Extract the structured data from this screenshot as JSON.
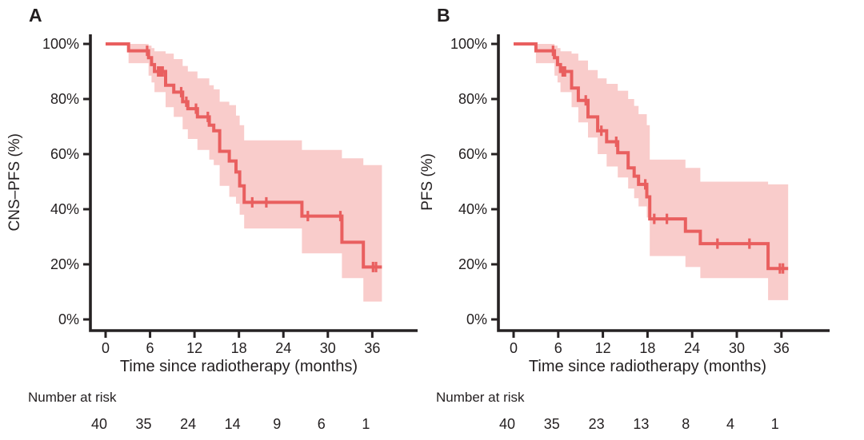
{
  "colors": {
    "line": "#e95f5f",
    "band": "#f9cccb",
    "axis": "#262223",
    "text": "#231f20"
  },
  "chart_data": [
    {
      "type": "line",
      "subtype": "kaplan-meier-step",
      "panel_label": "A",
      "ylabel": "CNS–PFS (%)",
      "xlabel": "Time since radiotherapy (months)",
      "risk_label": "Number at risk",
      "x_ticks": [
        0,
        6,
        12,
        18,
        24,
        30,
        36
      ],
      "y_ticks": [
        {
          "value": 0,
          "label": "0%"
        },
        {
          "value": 20,
          "label": "20%"
        },
        {
          "value": 40,
          "label": "40%"
        },
        {
          "value": 60,
          "label": "60%"
        },
        {
          "value": 80,
          "label": "80%"
        },
        {
          "value": 100,
          "label": "100%"
        }
      ],
      "xlim": [
        0,
        40
      ],
      "ylim": [
        0,
        100
      ],
      "grid": false,
      "legend": false,
      "number_at_risk": [
        40,
        35,
        24,
        14,
        9,
        6,
        1
      ],
      "end_time": 37.3,
      "survival_steps": [
        [
          0,
          100
        ],
        [
          3.1,
          97.5
        ],
        [
          5.8,
          95
        ],
        [
          6.2,
          92.5
        ],
        [
          6.6,
          90
        ],
        [
          8.1,
          85
        ],
        [
          9.2,
          82.5
        ],
        [
          10.4,
          79
        ],
        [
          11.1,
          76.5
        ],
        [
          12.4,
          73.5
        ],
        [
          14.0,
          70.5
        ],
        [
          14.6,
          68.5
        ],
        [
          15.4,
          61
        ],
        [
          16.7,
          57.5
        ],
        [
          17.6,
          53.5
        ],
        [
          18.1,
          48.5
        ],
        [
          18.7,
          42.5
        ],
        [
          26.5,
          37.5
        ],
        [
          31.9,
          28
        ],
        [
          34.8,
          19
        ]
      ],
      "censors": [
        [
          5.6,
          97.5
        ],
        [
          7.1,
          90
        ],
        [
          7.4,
          90
        ],
        [
          7.7,
          90
        ],
        [
          10.2,
          82.5
        ],
        [
          10.9,
          79
        ],
        [
          12.2,
          76.5
        ],
        [
          13.8,
          73.5
        ],
        [
          19.8,
          42.5
        ],
        [
          21.7,
          42.5
        ],
        [
          27.3,
          37.5
        ],
        [
          31.7,
          37.5
        ],
        [
          36.1,
          19
        ],
        [
          36.5,
          19
        ]
      ],
      "ci_band": [
        [
          3.1,
          93,
          100
        ],
        [
          5.8,
          88.5,
          99.4
        ],
        [
          6.2,
          86,
          98.5
        ],
        [
          6.6,
          82.5,
          97.3
        ],
        [
          8.1,
          77,
          96.5
        ],
        [
          9.2,
          73.5,
          94.5
        ],
        [
          10.4,
          69,
          92
        ],
        [
          11.1,
          65.5,
          90
        ],
        [
          12.4,
          61.5,
          87.5
        ],
        [
          14.0,
          58,
          85
        ],
        [
          14.6,
          56,
          83.5
        ],
        [
          15.4,
          48.5,
          79
        ],
        [
          16.7,
          44.5,
          77.8
        ],
        [
          17.6,
          42,
          74
        ],
        [
          18.1,
          38,
          70.5
        ],
        [
          18.7,
          33,
          65
        ],
        [
          26.5,
          24,
          61.5
        ],
        [
          31.9,
          15,
          58.5
        ],
        [
          34.8,
          6.5,
          56
        ]
      ]
    },
    {
      "type": "line",
      "subtype": "kaplan-meier-step",
      "panel_label": "B",
      "ylabel": "PFS (%)",
      "xlabel": "Time since radiotherapy (months)",
      "risk_label": "Number at risk",
      "x_ticks": [
        0,
        6,
        12,
        18,
        24,
        30,
        36
      ],
      "y_ticks": [
        {
          "value": 0,
          "label": "0%"
        },
        {
          "value": 20,
          "label": "20%"
        },
        {
          "value": 40,
          "label": "40%"
        },
        {
          "value": 60,
          "label": "60%"
        },
        {
          "value": 80,
          "label": "80%"
        },
        {
          "value": 100,
          "label": "100%"
        }
      ],
      "xlim": [
        0,
        40
      ],
      "ylim": [
        0,
        100
      ],
      "grid": false,
      "legend": false,
      "number_at_risk": [
        40,
        35,
        23,
        13,
        8,
        4,
        1
      ],
      "end_time": 36.9,
      "survival_steps": [
        [
          0,
          100
        ],
        [
          3.0,
          97.5
        ],
        [
          5.5,
          95
        ],
        [
          5.9,
          92.5
        ],
        [
          6.3,
          90
        ],
        [
          7.8,
          84
        ],
        [
          8.7,
          79.5
        ],
        [
          10.0,
          73.5
        ],
        [
          11.3,
          68.5
        ],
        [
          12.5,
          64.5
        ],
        [
          14.0,
          60.5
        ],
        [
          15.4,
          55
        ],
        [
          16.2,
          52
        ],
        [
          16.8,
          49
        ],
        [
          17.9,
          44.5
        ],
        [
          18.3,
          36.5
        ],
        [
          23.1,
          32
        ],
        [
          25.1,
          27.5
        ],
        [
          34.2,
          18.5
        ]
      ],
      "censors": [
        [
          5.3,
          97.5
        ],
        [
          6.6,
          90
        ],
        [
          6.9,
          90
        ],
        [
          9.7,
          79.5
        ],
        [
          11.8,
          68.5
        ],
        [
          13.8,
          64.5
        ],
        [
          17.7,
          49
        ],
        [
          18.9,
          36.5
        ],
        [
          20.6,
          36.5
        ],
        [
          27.4,
          27.5
        ],
        [
          31.7,
          27.5
        ],
        [
          35.8,
          18.5
        ],
        [
          36.2,
          18.5
        ]
      ],
      "ci_band": [
        [
          3.0,
          93,
          100
        ],
        [
          5.5,
          88.5,
          99.4
        ],
        [
          5.9,
          86,
          98.5
        ],
        [
          6.3,
          82.5,
          97.3
        ],
        [
          7.8,
          77,
          96.5
        ],
        [
          8.7,
          71.5,
          94
        ],
        [
          10.0,
          66,
          90.5
        ],
        [
          11.3,
          60,
          87.5
        ],
        [
          12.5,
          55.5,
          85.5
        ],
        [
          14.0,
          51.5,
          83
        ],
        [
          15.4,
          47.5,
          80
        ],
        [
          16.2,
          44,
          77.5
        ],
        [
          16.8,
          41,
          74.5
        ],
        [
          17.9,
          37,
          70.5
        ],
        [
          18.3,
          23,
          58
        ],
        [
          23.1,
          19,
          55
        ],
        [
          25.1,
          15,
          50
        ],
        [
          34.2,
          7,
          49
        ]
      ]
    }
  ]
}
